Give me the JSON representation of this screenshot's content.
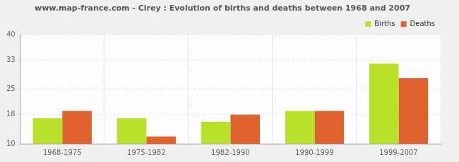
{
  "chart_data": {
    "type": "bar",
    "title": "www.map-france.com - Cirey : Evolution of births and deaths between 1968 and 2007",
    "categories": [
      "1968-1975",
      "1975-1982",
      "1982-1990",
      "1990-1999",
      "1999-2007"
    ],
    "series": [
      {
        "name": "Births",
        "color": "#b9e02b",
        "values": [
          17,
          17,
          16,
          19,
          32
        ]
      },
      {
        "name": "Deaths",
        "color": "#e0622e",
        "values": [
          19,
          12,
          18,
          19,
          28
        ]
      }
    ],
    "ylim": [
      10,
      40
    ],
    "yticks": [
      10,
      18,
      25,
      33,
      40
    ],
    "grid": true,
    "legend": "top-right"
  }
}
